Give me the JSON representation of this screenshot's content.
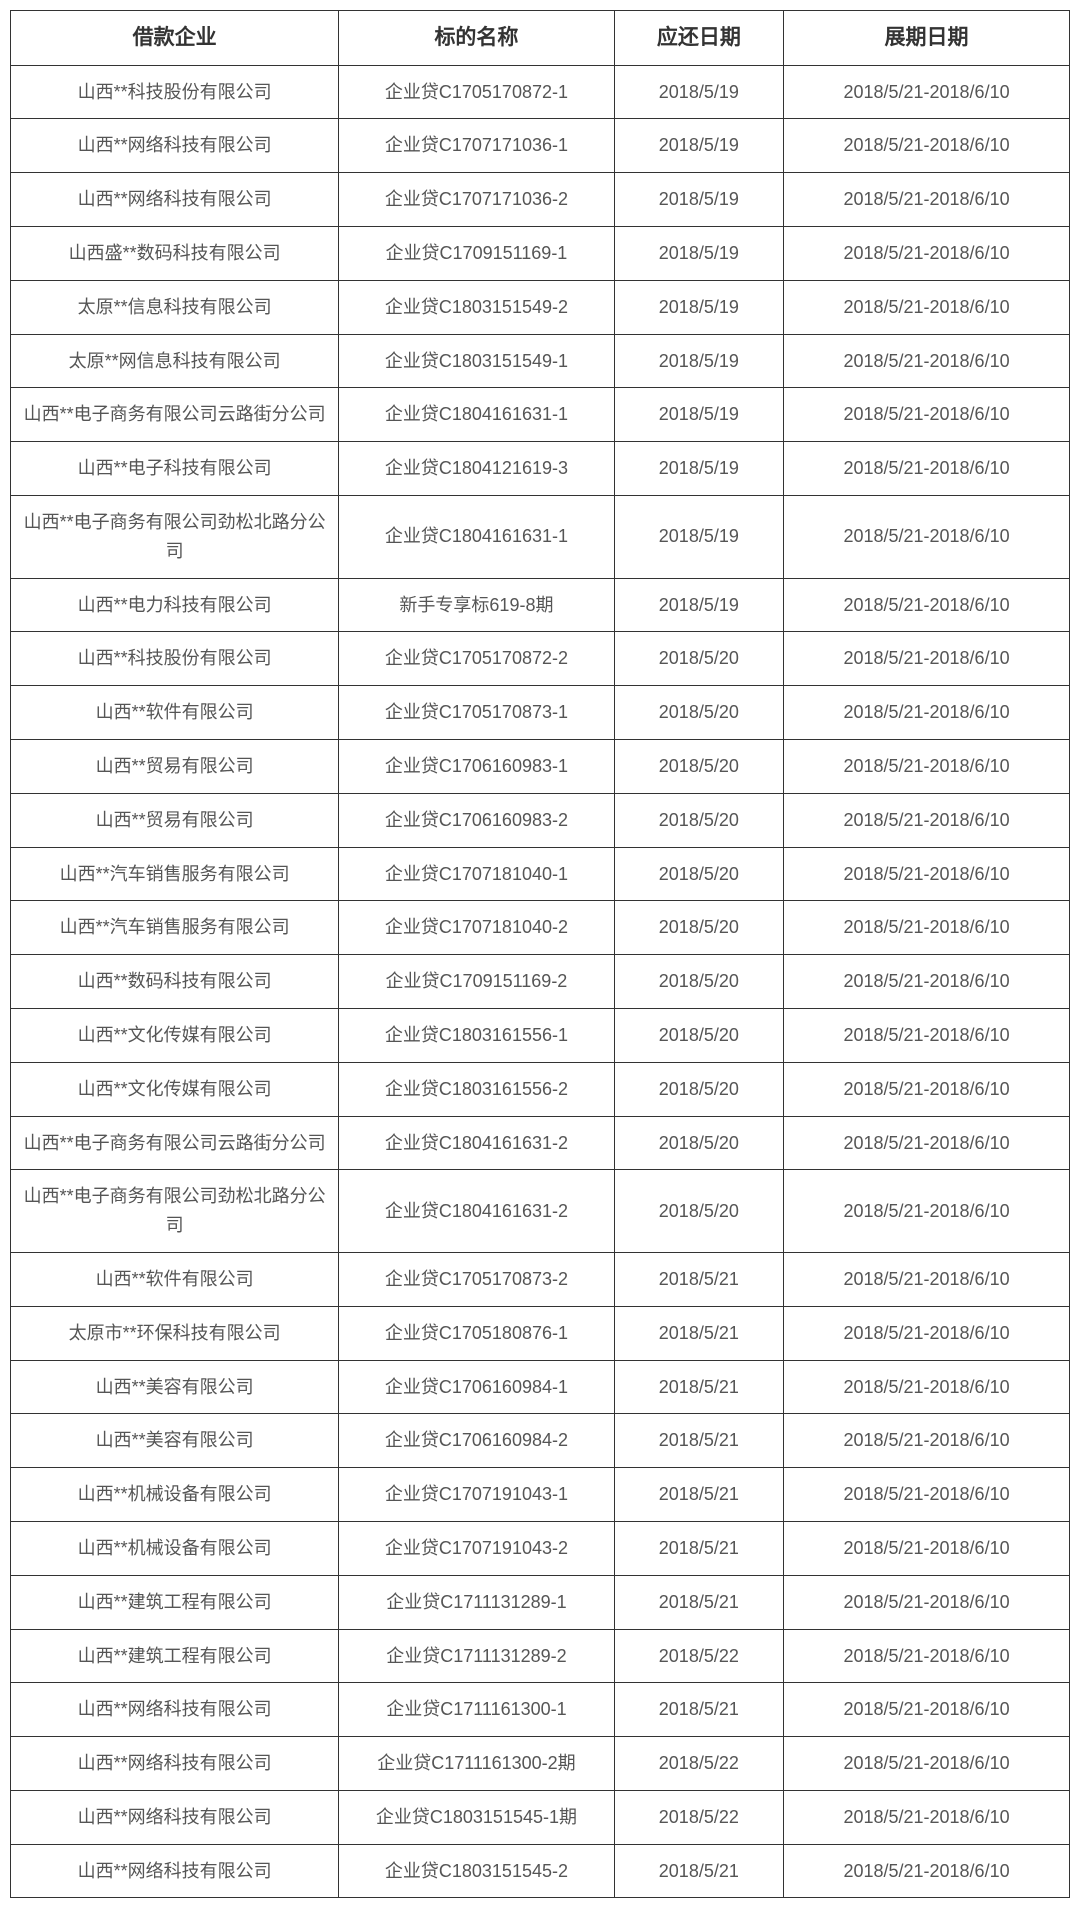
{
  "table": {
    "type": "table",
    "background_color": "#ffffff",
    "border_color": "#333333",
    "header_font_weight": "bold",
    "header_font_size": 21,
    "cell_font_size": 18,
    "header_text_color": "#333333",
    "cell_text_color": "#555555",
    "columns": [
      {
        "label": "借款企业",
        "width_pct": 31,
        "align": "center"
      },
      {
        "label": "标的名称",
        "width_pct": 26,
        "align": "center"
      },
      {
        "label": "应还日期",
        "width_pct": 16,
        "align": "center"
      },
      {
        "label": "展期日期",
        "width_pct": 27,
        "align": "center"
      }
    ],
    "rows": [
      [
        "山西**科技股份有限公司",
        "企业贷C1705170872-1",
        "2018/5/19",
        "2018/5/21-2018/6/10"
      ],
      [
        "山西**网络科技有限公司",
        "企业贷C1707171036-1",
        "2018/5/19",
        "2018/5/21-2018/6/10"
      ],
      [
        "山西**网络科技有限公司",
        "企业贷C1707171036-2",
        "2018/5/19",
        "2018/5/21-2018/6/10"
      ],
      [
        "山西盛**数码科技有限公司",
        "企业贷C1709151169-1",
        "2018/5/19",
        "2018/5/21-2018/6/10"
      ],
      [
        "太原**信息科技有限公司",
        "企业贷C1803151549-2",
        "2018/5/19",
        "2018/5/21-2018/6/10"
      ],
      [
        "太原**网信息科技有限公司",
        "企业贷C1803151549-1",
        "2018/5/19",
        "2018/5/21-2018/6/10"
      ],
      [
        "山西**电子商务有限公司云路街分公司",
        "企业贷C1804161631-1",
        "2018/5/19",
        "2018/5/21-2018/6/10"
      ],
      [
        "山西**电子科技有限公司",
        "企业贷C1804121619-3",
        "2018/5/19",
        "2018/5/21-2018/6/10"
      ],
      [
        "山西**电子商务有限公司劲松北路分公司",
        "企业贷C1804161631-1",
        "2018/5/19",
        "2018/5/21-2018/6/10"
      ],
      [
        "山西**电力科技有限公司",
        "新手专享标619-8期",
        "2018/5/19",
        "2018/5/21-2018/6/10"
      ],
      [
        "山西**科技股份有限公司",
        "企业贷C1705170872-2",
        "2018/5/20",
        "2018/5/21-2018/6/10"
      ],
      [
        "山西**软件有限公司",
        "企业贷C1705170873-1",
        "2018/5/20",
        "2018/5/21-2018/6/10"
      ],
      [
        "山西**贸易有限公司",
        "企业贷C1706160983-1",
        "2018/5/20",
        "2018/5/21-2018/6/10"
      ],
      [
        "山西**贸易有限公司",
        "企业贷C1706160983-2",
        "2018/5/20",
        "2018/5/21-2018/6/10"
      ],
      [
        "山西**汽车销售服务有限公司",
        "企业贷C1707181040-1",
        "2018/5/20",
        "2018/5/21-2018/6/10"
      ],
      [
        "山西**汽车销售服务有限公司",
        "企业贷C1707181040-2",
        "2018/5/20",
        "2018/5/21-2018/6/10"
      ],
      [
        "山西**数码科技有限公司",
        "企业贷C1709151169-2",
        "2018/5/20",
        "2018/5/21-2018/6/10"
      ],
      [
        "山西**文化传媒有限公司",
        "企业贷C1803161556-1",
        "2018/5/20",
        "2018/5/21-2018/6/10"
      ],
      [
        "山西**文化传媒有限公司",
        "企业贷C1803161556-2",
        "2018/5/20",
        "2018/5/21-2018/6/10"
      ],
      [
        "山西**电子商务有限公司云路街分公司",
        "企业贷C1804161631-2",
        "2018/5/20",
        "2018/5/21-2018/6/10"
      ],
      [
        "山西**电子商务有限公司劲松北路分公司",
        "企业贷C1804161631-2",
        "2018/5/20",
        "2018/5/21-2018/6/10"
      ],
      [
        "山西**软件有限公司",
        "企业贷C1705170873-2",
        "2018/5/21",
        "2018/5/21-2018/6/10"
      ],
      [
        "太原市**环保科技有限公司",
        "企业贷C1705180876-1",
        "2018/5/21",
        "2018/5/21-2018/6/10"
      ],
      [
        "山西**美容有限公司",
        "企业贷C1706160984-1",
        "2018/5/21",
        "2018/5/21-2018/6/10"
      ],
      [
        "山西**美容有限公司",
        "企业贷C1706160984-2",
        "2018/5/21",
        "2018/5/21-2018/6/10"
      ],
      [
        "山西**机械设备有限公司",
        "企业贷C1707191043-1",
        "2018/5/21",
        "2018/5/21-2018/6/10"
      ],
      [
        "山西**机械设备有限公司",
        "企业贷C1707191043-2",
        "2018/5/21",
        "2018/5/21-2018/6/10"
      ],
      [
        "山西**建筑工程有限公司",
        "企业贷C1711131289-1",
        "2018/5/21",
        "2018/5/21-2018/6/10"
      ],
      [
        "山西**建筑工程有限公司",
        "企业贷C1711131289-2",
        "2018/5/22",
        "2018/5/21-2018/6/10"
      ],
      [
        "山西**网络科技有限公司",
        "企业贷C1711161300-1",
        "2018/5/21",
        "2018/5/21-2018/6/10"
      ],
      [
        "山西**网络科技有限公司",
        "企业贷C1711161300-2期",
        "2018/5/22",
        "2018/5/21-2018/6/10"
      ],
      [
        "山西**网络科技有限公司",
        "企业贷C1803151545-1期",
        "2018/5/22",
        "2018/5/21-2018/6/10"
      ],
      [
        "山西**网络科技有限公司",
        "企业贷C1803151545-2",
        "2018/5/21",
        "2018/5/21-2018/6/10"
      ]
    ]
  }
}
